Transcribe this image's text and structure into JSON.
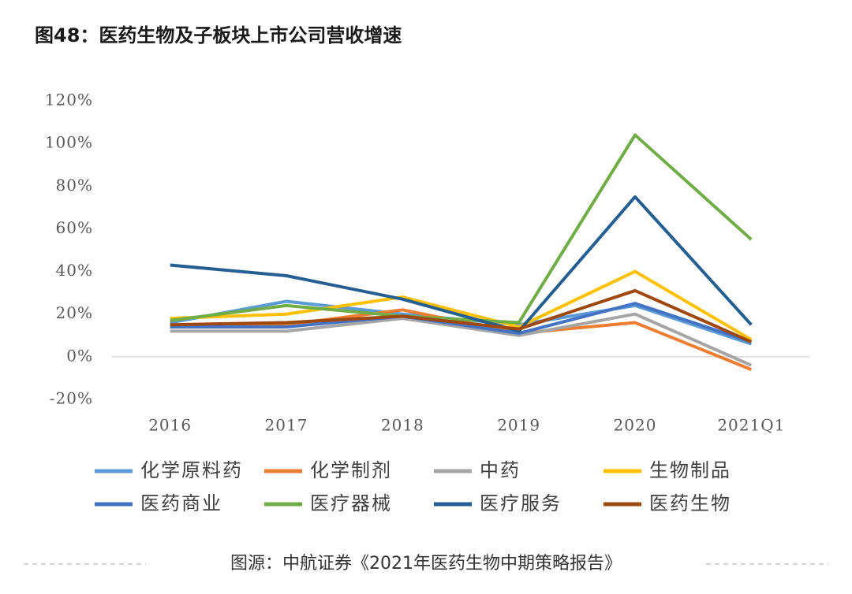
{
  "chart_data": {
    "type": "line",
    "title": "图48：医药生物及子板块上市公司营收增速",
    "source": "图源：中航证券《2021年医药生物中期策略报告》",
    "categories": [
      "2016",
      "2017",
      "2018",
      "2019",
      "2020",
      "2021Q1"
    ],
    "ylim": [
      -20,
      120
    ],
    "yticks": [
      {
        "value": -20,
        "label": "-20%"
      },
      {
        "value": 0,
        "label": "0%"
      },
      {
        "value": 20,
        "label": "20%"
      },
      {
        "value": 40,
        "label": "40%"
      },
      {
        "value": 60,
        "label": "60%"
      },
      {
        "value": 80,
        "label": "80%"
      },
      {
        "value": 100,
        "label": "100%"
      },
      {
        "value": 120,
        "label": "120%"
      }
    ],
    "series": [
      {
        "name": "化学原料药",
        "color": "#5b9bd5",
        "values": [
          16,
          26,
          20,
          15,
          24,
          6
        ]
      },
      {
        "name": "化学制剂",
        "color": "#ed7d31",
        "values": [
          14,
          15,
          22,
          11,
          16,
          -6
        ]
      },
      {
        "name": "中药",
        "color": "#a5a5a5",
        "values": [
          12,
          12,
          18,
          10,
          20,
          -4
        ]
      },
      {
        "name": "生物制品",
        "color": "#ffc000",
        "values": [
          18,
          20,
          28,
          14,
          40,
          8
        ]
      },
      {
        "name": "医药商业",
        "color": "#4472c4",
        "values": [
          14,
          14,
          19,
          11,
          25,
          7
        ]
      },
      {
        "name": "医疗器械",
        "color": "#70ad47",
        "values": [
          17,
          24,
          19,
          16,
          104,
          55
        ]
      },
      {
        "name": "医疗服务",
        "color": "#255e91",
        "values": [
          43,
          38,
          27,
          12,
          75,
          15
        ]
      },
      {
        "name": "医药生物",
        "color": "#9e480e",
        "values": [
          15,
          16,
          19,
          13,
          31,
          7
        ]
      }
    ]
  }
}
